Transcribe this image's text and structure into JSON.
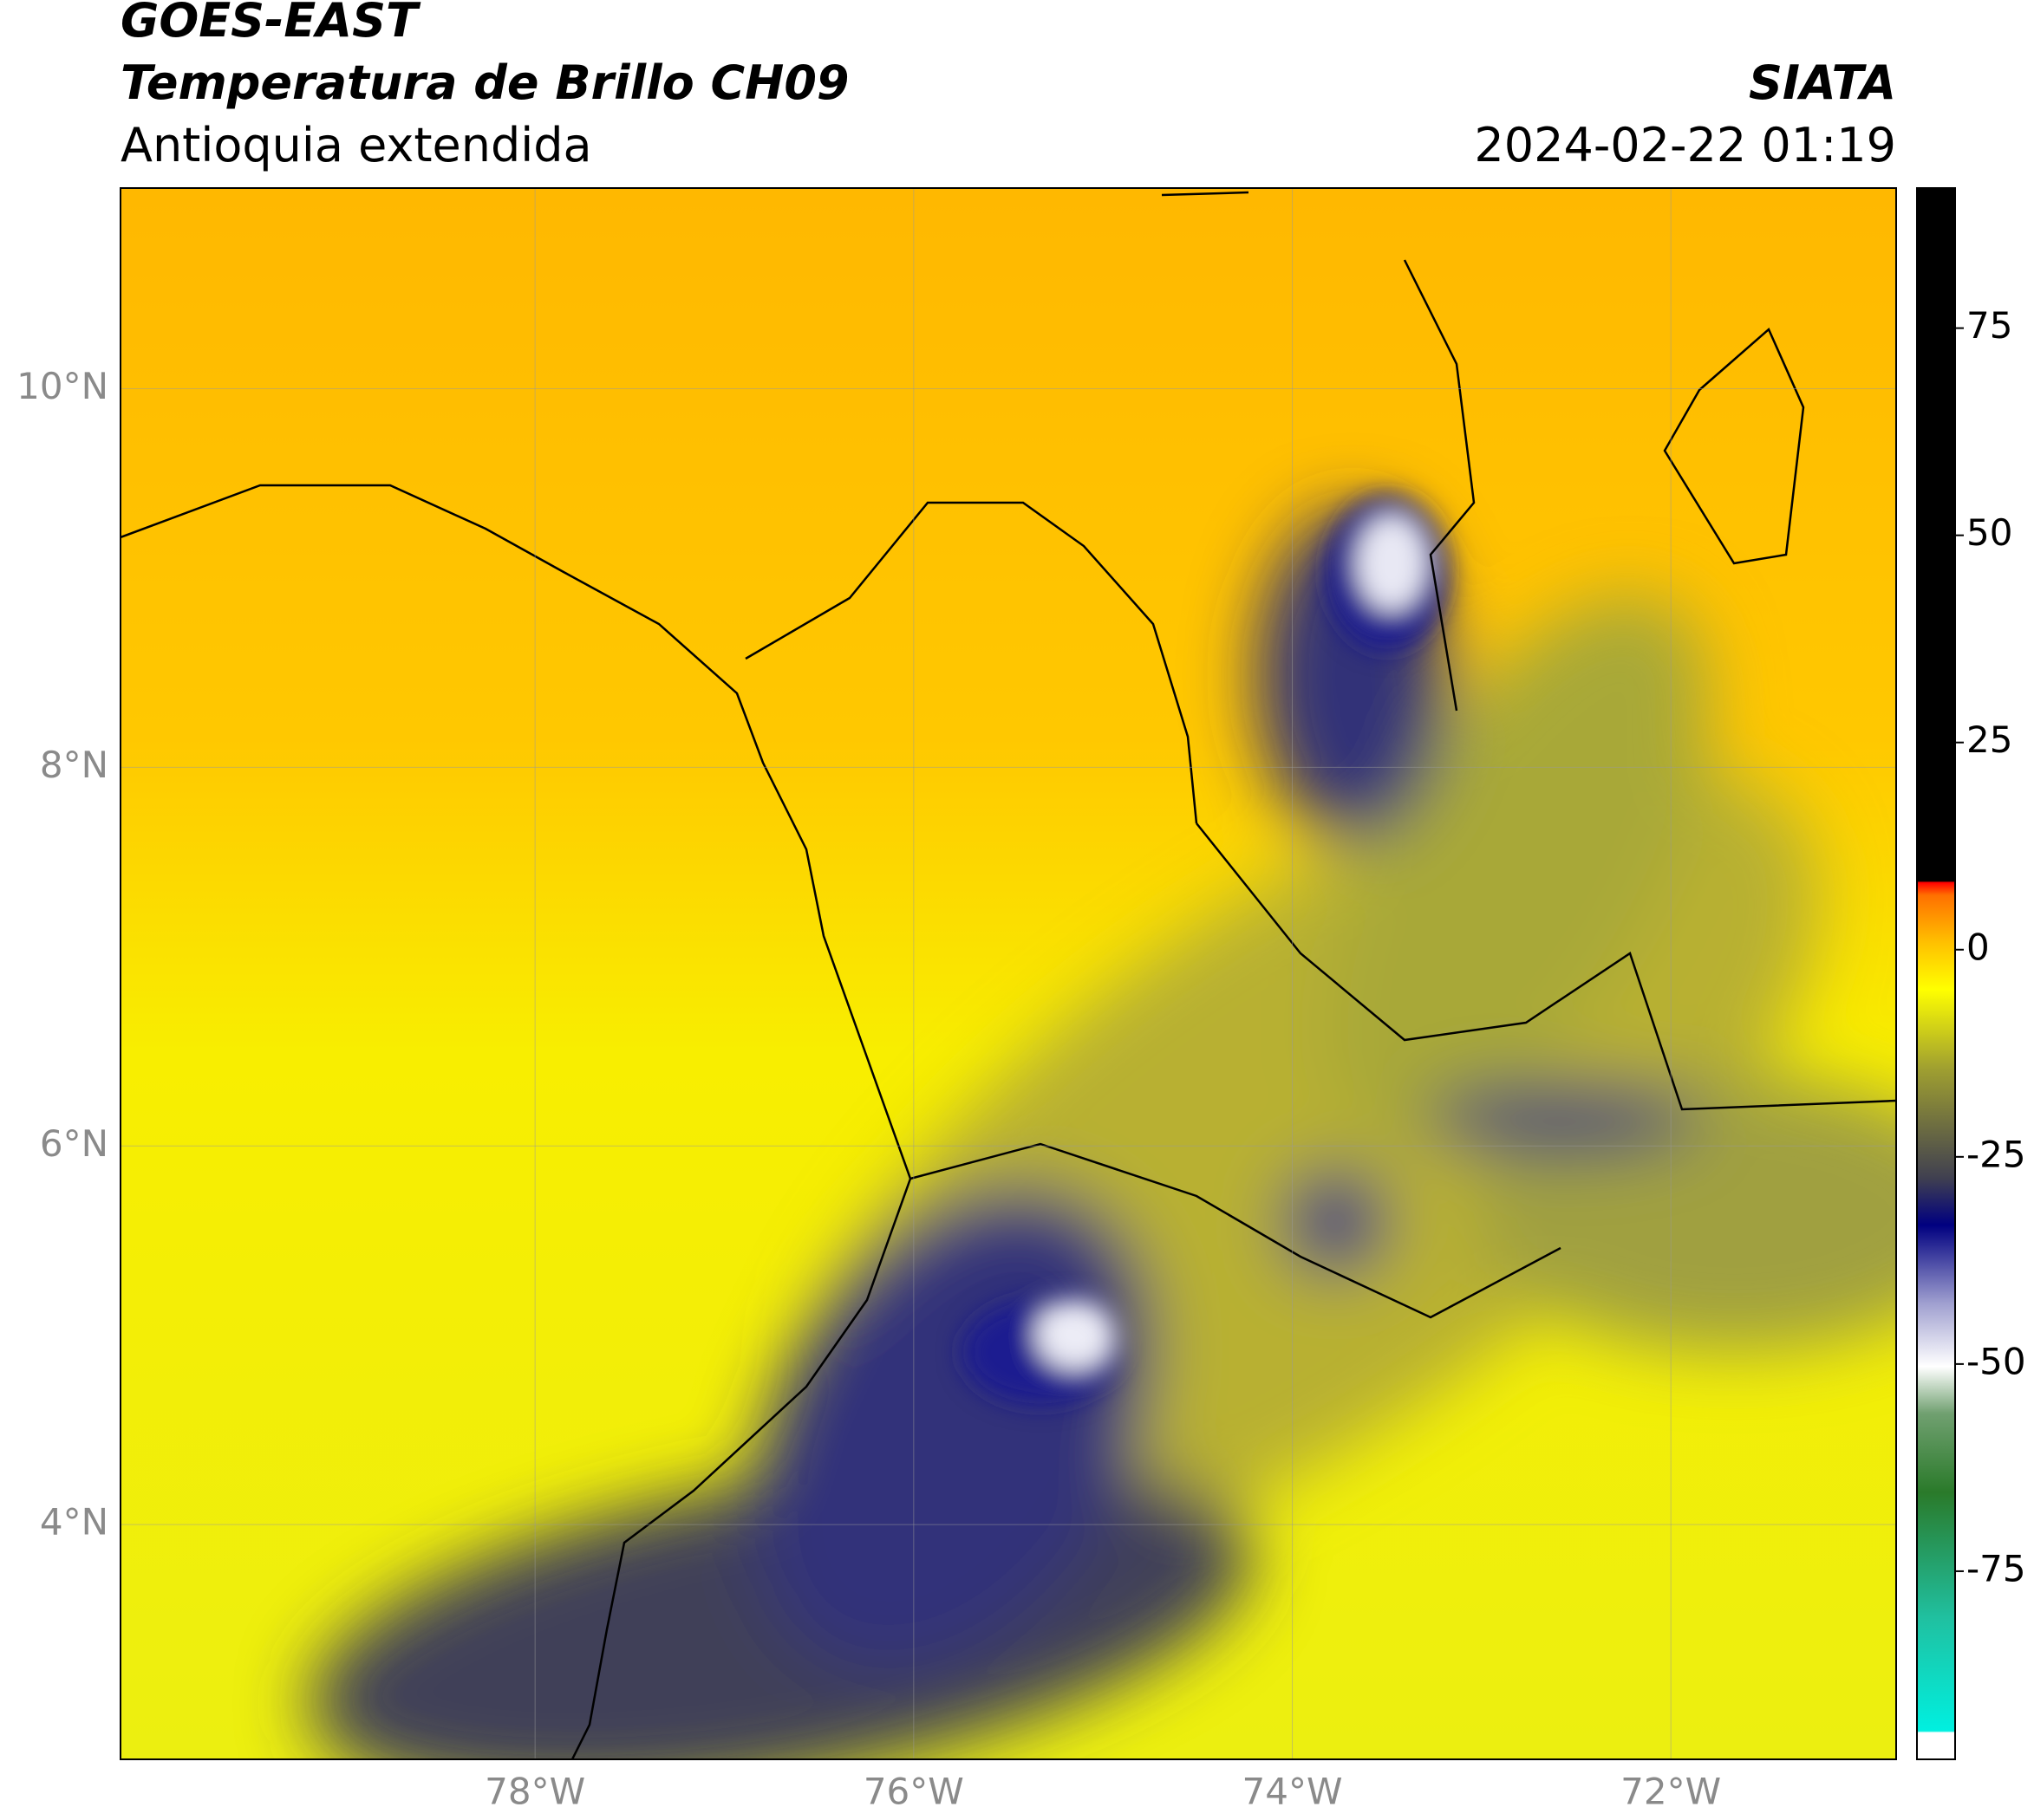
{
  "header": {
    "title": "GOES-EAST",
    "subtitle": "Temperatura de Brillo CH09",
    "region": "Antioquia extendida",
    "agency": "SIATA",
    "timestamp": "2024-02-22 01:19"
  },
  "map": {
    "xlim": [
      -80.19,
      -70.81
    ],
    "ylim": [
      2.76,
      11.06
    ],
    "xticks": [
      {
        "value": -78,
        "label": "78°W"
      },
      {
        "value": -76,
        "label": "76°W"
      },
      {
        "value": -74,
        "label": "74°W"
      },
      {
        "value": -72,
        "label": "72°W"
      }
    ],
    "yticks": [
      {
        "value": 4,
        "label": "4°N"
      },
      {
        "value": 6,
        "label": "6°N"
      },
      {
        "value": 8,
        "label": "8°N"
      },
      {
        "value": 10,
        "label": "10°N"
      }
    ],
    "grid": true
  },
  "colorbar": {
    "lim": [
      -97.7,
      91.9
    ],
    "ticks": [
      -75,
      -50,
      -25,
      0,
      25,
      50,
      75
    ]
  }
}
